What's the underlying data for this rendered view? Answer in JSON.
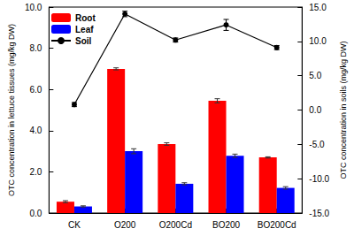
{
  "chart_data": {
    "type": "bar",
    "categories": [
      "CK",
      "O200",
      "O200Cd",
      "BO200",
      "BO200Cd"
    ],
    "series": [
      {
        "name": "Root",
        "type": "bar",
        "color": "#ff0000",
        "values": [
          0.55,
          7.0,
          3.35,
          5.45,
          2.7
        ],
        "errors": [
          0.05,
          0.05,
          0.06,
          0.1,
          0.03
        ]
      },
      {
        "name": "Leaf",
        "type": "bar",
        "color": "#0000ff",
        "values": [
          0.32,
          3.0,
          1.42,
          2.78,
          1.22
        ],
        "errors": [
          0.03,
          0.12,
          0.05,
          0.08,
          0.06
        ]
      },
      {
        "name": "Soil",
        "type": "line",
        "axis": "y2",
        "color": "#000000",
        "marker": "circle",
        "values": [
          0.8,
          14.0,
          10.2,
          12.4,
          9.1
        ],
        "errors": [
          0.3,
          0.4,
          0.3,
          0.8,
          0.3
        ]
      }
    ],
    "ylabel": "OTC concentration in lettuce tissues (mg/kg DW)",
    "y2label": "OTC concentration in soils (mg/kg DW)",
    "ylim": [
      0,
      10
    ],
    "yticks": [
      {
        "value": 0,
        "label": "0.0"
      },
      {
        "value": 2,
        "label": "2.0"
      },
      {
        "value": 4,
        "label": "4.0"
      },
      {
        "value": 6,
        "label": "6.0"
      },
      {
        "value": 8,
        "label": "8.0"
      },
      {
        "value": 10,
        "label": "10.0"
      }
    ],
    "y2lim": [
      -15,
      15
    ],
    "y2ticks": [
      {
        "value": -15,
        "label": "-15.0"
      },
      {
        "value": -10,
        "label": "-10.0"
      },
      {
        "value": -5,
        "label": "-5.0"
      },
      {
        "value": 0,
        "label": "0.0"
      },
      {
        "value": 5,
        "label": "5.0"
      },
      {
        "value": 10,
        "label": "10.0"
      },
      {
        "value": 15,
        "label": "15.0"
      }
    ],
    "legend": "upper left",
    "grid": false
  }
}
